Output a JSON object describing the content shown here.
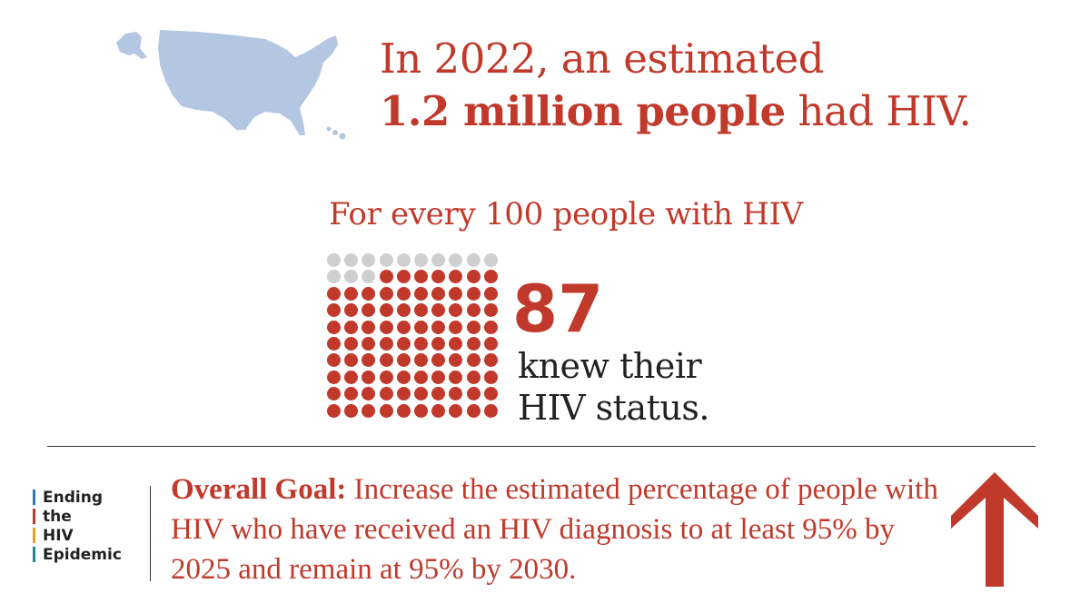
{
  "headline": {
    "line1": "In 2022, an estimated",
    "line2_bold": "1.2 million people",
    "line2_rest": "had HIV."
  },
  "subhead": "For every 100 people with HIV",
  "stat": {
    "total": 100,
    "value": 87,
    "value_text": "87",
    "caption_line1": "knew their",
    "caption_line2": "HIV status."
  },
  "logo": {
    "lines": [
      {
        "text": "Ending",
        "color": "#2a7ab8"
      },
      {
        "text": "the",
        "color": "#c0392b"
      },
      {
        "text": "HIV",
        "color": "#e8a317"
      },
      {
        "text": "Epidemic",
        "color": "#1a8a8a"
      }
    ]
  },
  "goal": {
    "label": "Overall Goal:",
    "text": "Increase the estimated percentage of people with HIV who have received an HIV diagnosis to at least 95% by 2025 and remain at 95% by 2030."
  },
  "colors": {
    "accent": "#c0392b",
    "dot_empty": "#cfcfcf",
    "map": "#b3c7e3"
  },
  "icons": {
    "map": "us-map-icon",
    "arrow": "up-arrow-icon"
  }
}
